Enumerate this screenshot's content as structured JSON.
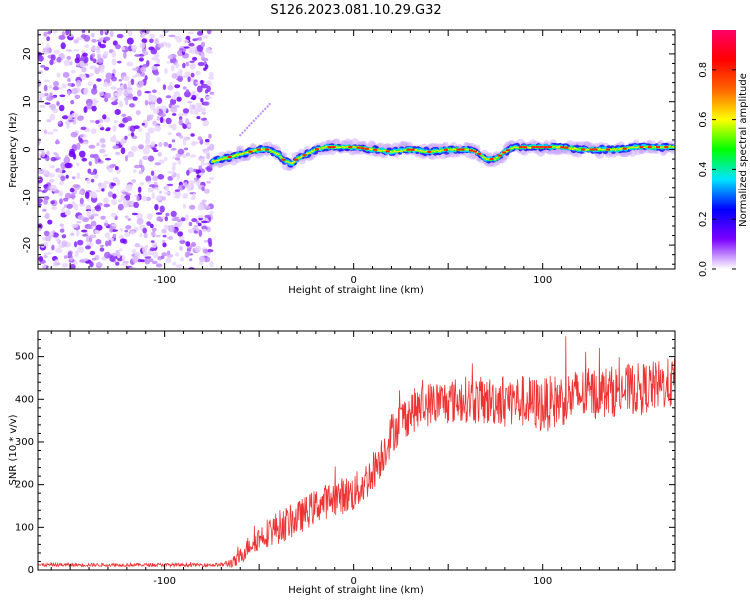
{
  "title": "S126.2023.081.10.29.G32",
  "chart_data": [
    {
      "type": "heatmap",
      "xlabel": "Height of straight line (km)",
      "ylabel": "Frequency (Hz)",
      "xlim": [
        -167,
        170
      ],
      "ylim": [
        -25,
        25
      ],
      "x_ticks": [
        "-100",
        "0",
        "100"
      ],
      "x_tick_values": [
        -100,
        0,
        100
      ],
      "y_ticks": [
        "20",
        "10",
        "0",
        "-10",
        "-20"
      ],
      "y_tick_values": [
        20,
        10,
        0,
        -10,
        -20
      ],
      "noise_region_x": [
        -167,
        -75
      ],
      "signal_track": {
        "x": [
          -75,
          -70,
          -65,
          -60,
          -55,
          -50,
          -45,
          -40,
          -36,
          -33,
          -30,
          -25,
          -20,
          -15,
          -10,
          -5,
          0,
          10,
          20,
          30,
          40,
          50,
          60,
          65,
          70,
          75,
          80,
          85,
          90,
          100,
          110,
          120,
          130,
          140,
          150,
          160,
          170
        ],
        "y": [
          -2.5,
          -2,
          -1.5,
          -1,
          -0.5,
          0,
          0,
          -1,
          -2.5,
          -3,
          -2,
          -1,
          0,
          0.5,
          0.5,
          0.5,
          0.5,
          0,
          -0.5,
          0,
          -0.5,
          0,
          0,
          -0.5,
          -2,
          -2,
          -0.5,
          0.5,
          0.5,
          0.5,
          0.5,
          0,
          0,
          0,
          0.5,
          0.5,
          0.5
        ]
      },
      "colorbar": {
        "label": "Normalized spectral amplitude",
        "ticks": [
          "0.0",
          "0.2",
          "0.4",
          "0.6",
          "0.8"
        ],
        "tick_values": [
          0.0,
          0.2,
          0.4,
          0.6,
          0.8
        ],
        "range": [
          0,
          0.96
        ],
        "colors": [
          "#ffffff",
          "#7a00ff",
          "#0000ff",
          "#00e5ff",
          "#00ff00",
          "#ffff00",
          "#ff6600",
          "#ff0000",
          "#ff0066"
        ]
      }
    },
    {
      "type": "line",
      "xlabel": "Height of straight line (km)",
      "ylabel": "SNR (10 * v/v)",
      "xlim": [
        -167,
        170
      ],
      "ylim": [
        0,
        560
      ],
      "x_ticks": [
        "-100",
        "0",
        "100"
      ],
      "x_tick_values": [
        -100,
        0,
        100
      ],
      "y_ticks": [
        "0",
        "100",
        "200",
        "300",
        "400",
        "500"
      ],
      "y_tick_values": [
        0,
        100,
        200,
        300,
        400,
        500
      ],
      "color": "#ee3333",
      "trend": {
        "x": [
          -167,
          -70,
          -62,
          -55,
          -45,
          -35,
          -30,
          -20,
          -10,
          0,
          5,
          10,
          15,
          20,
          25,
          30,
          40,
          50,
          60,
          70,
          80,
          90,
          100,
          110,
          120,
          130,
          140,
          150,
          160,
          170
        ],
        "y": [
          12,
          12,
          20,
          60,
          90,
          110,
          120,
          150,
          170,
          180,
          200,
          230,
          270,
          320,
          350,
          370,
          390,
          395,
          400,
          395,
          400,
          395,
          385,
          400,
          410,
          415,
          420,
          425,
          430,
          440
        ]
      },
      "noise_amplitude": {
        "x": [
          -167,
          -70,
          -60,
          -40,
          -20,
          0,
          20,
          60,
          100,
          140,
          170
        ],
        "y": [
          4,
          4,
          20,
          40,
          40,
          45,
          50,
          55,
          65,
          60,
          60
        ]
      }
    }
  ]
}
